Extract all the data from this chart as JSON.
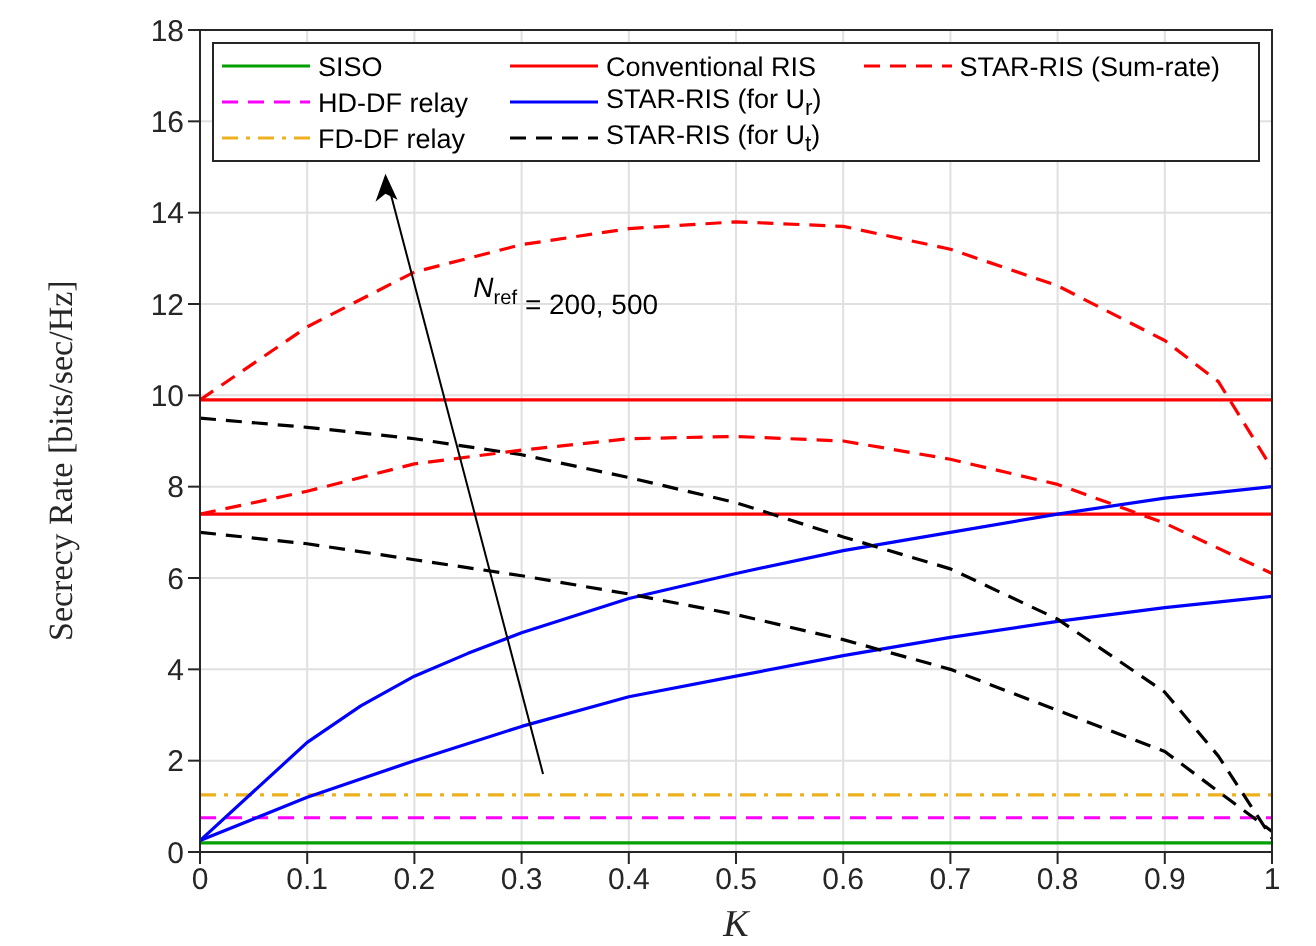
{
  "chart_data": {
    "type": "line",
    "xlabel": "K",
    "ylabel": "Secrecy Rate [bits/sec/Hz]",
    "xlim": [
      0,
      1
    ],
    "xticks": [
      0,
      0.1,
      0.2,
      0.3,
      0.4,
      0.5,
      0.6,
      0.7,
      0.8,
      0.9,
      1
    ],
    "ylim": [
      0,
      18
    ],
    "yticks": [
      0,
      2,
      4,
      6,
      8,
      10,
      12,
      14,
      16,
      18
    ],
    "grid": true,
    "legend": "top",
    "marker": "none",
    "annotations": [
      "N$_{ref}$ = 200, 500"
    ],
    "series": [
      {
        "name": "SISO",
        "color": "#00a000",
        "line_style": "solid",
        "x": [
          0,
          1
        ],
        "values": [
          0.2,
          0.2
        ]
      },
      {
        "name": "HD-DF relay",
        "color": "#ff00ff",
        "line_style": "dashed",
        "x": [
          0,
          1
        ],
        "values": [
          0.75,
          0.75
        ]
      },
      {
        "name": "FD-DF relay",
        "color": "#edb120",
        "line_style": "dashdot",
        "x": [
          0,
          1
        ],
        "values": [
          1.25,
          1.25
        ]
      },
      {
        "name": "Conventional RIS",
        "color": "#ff0000",
        "line_style": "solid",
        "x": [
          0,
          1
        ],
        "values": [
          9.9,
          9.9
        ]
      },
      {
        "color": "#ff0000",
        "line_style": "solid",
        "x": [
          0,
          1
        ],
        "values": [
          7.4,
          7.4
        ]
      },
      {
        "name": "STAR-RIS (for U$_{r}$)",
        "color": "#0000ff",
        "line_style": "solid",
        "x": [
          0,
          0.1,
          0.15,
          0.2,
          0.25,
          0.3,
          0.4,
          0.5,
          0.6,
          0.7,
          0.8,
          0.9,
          1
        ],
        "values": [
          0.25,
          2.4,
          3.2,
          3.85,
          4.35,
          4.8,
          5.55,
          6.1,
          6.6,
          7.0,
          7.4,
          7.75,
          8.0
        ]
      },
      {
        "color": "#0000ff",
        "line_style": "solid",
        "x": [
          0,
          0.1,
          0.2,
          0.3,
          0.4,
          0.5,
          0.6,
          0.7,
          0.8,
          0.9,
          1
        ],
        "values": [
          0.25,
          1.2,
          2.0,
          2.75,
          3.4,
          3.85,
          4.3,
          4.7,
          5.05,
          5.35,
          5.6
        ]
      },
      {
        "name": "STAR-RIS (for U$_{t}$)",
        "color": "#000000",
        "line_style": "dashed",
        "x": [
          0,
          0.1,
          0.2,
          0.3,
          0.4,
          0.5,
          0.6,
          0.7,
          0.8,
          0.9,
          0.95,
          1
        ],
        "values": [
          9.5,
          9.3,
          9.05,
          8.7,
          8.2,
          7.65,
          6.9,
          6.2,
          5.1,
          3.5,
          2.1,
          0.3
        ]
      },
      {
        "color": "#000000",
        "line_style": "dashed",
        "x": [
          0,
          0.1,
          0.2,
          0.3,
          0.4,
          0.5,
          0.6,
          0.7,
          0.8,
          0.9,
          1
        ],
        "values": [
          7.0,
          6.75,
          6.4,
          6.05,
          5.65,
          5.2,
          4.65,
          4.0,
          3.1,
          2.2,
          0.45
        ]
      },
      {
        "name": "STAR-RIS (Sum-rate)",
        "color": "#ff0000",
        "line_style": "dashed",
        "x": [
          0,
          0.1,
          0.2,
          0.3,
          0.4,
          0.5,
          0.6,
          0.7,
          0.8,
          0.9,
          0.95,
          1
        ],
        "values": [
          9.9,
          11.5,
          12.7,
          13.3,
          13.65,
          13.8,
          13.7,
          13.2,
          12.4,
          11.2,
          10.3,
          8.4
        ]
      },
      {
        "color": "#ff0000",
        "line_style": "dashed",
        "x": [
          0,
          0.1,
          0.2,
          0.3,
          0.4,
          0.5,
          0.6,
          0.7,
          0.8,
          0.9,
          1
        ],
        "values": [
          7.4,
          7.9,
          8.5,
          8.8,
          9.05,
          9.1,
          9.0,
          8.6,
          8.05,
          7.2,
          6.1
        ]
      }
    ]
  }
}
